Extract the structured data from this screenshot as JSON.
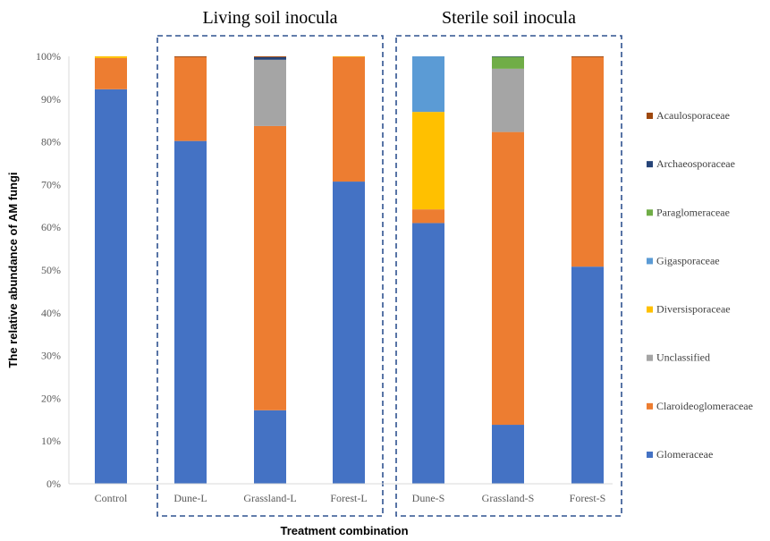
{
  "chart_data": {
    "type": "bar",
    "stacked": true,
    "title": "",
    "xlabel": "Treatment combination",
    "ylabel": "The relative abundance of AM fungi",
    "ylim": [
      0,
      100
    ],
    "yticks": [
      "0%",
      "10%",
      "20%",
      "30%",
      "40%",
      "50%",
      "60%",
      "70%",
      "80%",
      "90%",
      "100%"
    ],
    "grid": false,
    "legend_position": "right",
    "categories": [
      "Control",
      "Dune-L",
      "Grassland-L",
      "Forest-L",
      "Dune-S",
      "Grassland-S",
      "Forest-S"
    ],
    "groups": [
      {
        "label": "Living soil inocula",
        "categories": [
          "Dune-L",
          "Grassland-L",
          "Forest-L"
        ]
      },
      {
        "label": "Sterile soil inocula",
        "categories": [
          "Dune-S",
          "Grassland-S",
          "Forest-S"
        ]
      }
    ],
    "series": [
      {
        "name": "Glomeraceae",
        "color": "#4472C4",
        "values": [
          92.3,
          80.2,
          17.2,
          70.7,
          61.0,
          13.8,
          50.8
        ]
      },
      {
        "name": "Claroideoglomeraceae",
        "color": "#ED7D31",
        "values": [
          7.3,
          19.6,
          66.5,
          29.2,
          3.2,
          68.5,
          49.0
        ]
      },
      {
        "name": "Unclassified",
        "color": "#A5A5A5",
        "values": [
          0,
          0,
          15.5,
          0,
          0,
          14.8,
          0
        ]
      },
      {
        "name": "Diversisporaceae",
        "color": "#FFC000",
        "values": [
          0.4,
          0,
          0,
          0.1,
          22.8,
          0,
          0
        ]
      },
      {
        "name": "Gigasporaceae",
        "color": "#5B9BD5",
        "values": [
          0,
          0,
          0,
          0,
          13.0,
          0,
          0
        ]
      },
      {
        "name": "Paraglomeraceae",
        "color": "#70AD47",
        "values": [
          0,
          0,
          0,
          0,
          0,
          2.8,
          0
        ]
      },
      {
        "name": "Archaeosporaceae",
        "color": "#264478",
        "values": [
          0,
          0,
          0.6,
          0,
          0,
          0.1,
          0
        ]
      },
      {
        "name": "Acaulosporaceae",
        "color": "#9E480E",
        "values": [
          0,
          0.2,
          0.2,
          0,
          0,
          0,
          0.2
        ]
      }
    ]
  }
}
